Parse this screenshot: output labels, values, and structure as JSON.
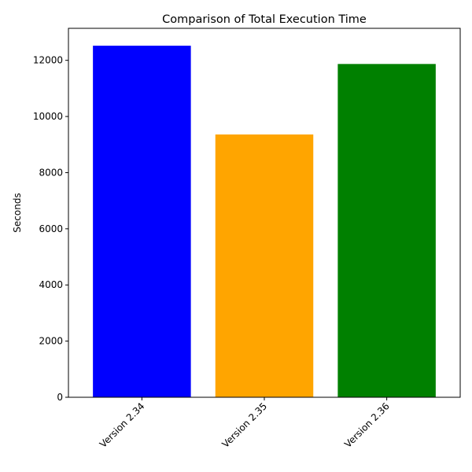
{
  "chart_data": {
    "type": "bar",
    "title": "Comparison of Total Execution Time",
    "xlabel": "",
    "ylabel": "Seconds",
    "categories": [
      "Version 2.34",
      "Version 2.35",
      "Version 2.36"
    ],
    "values": [
      12520,
      9360,
      11870
    ],
    "colors": [
      "#0000ff",
      "#ffa500",
      "#008000"
    ],
    "ylim": [
      0,
      13140
    ],
    "yticks": [
      0,
      2000,
      4000,
      6000,
      8000,
      10000,
      12000
    ],
    "grid": false,
    "legend": "none",
    "xtick_rotation": "45deg right-aligned"
  }
}
